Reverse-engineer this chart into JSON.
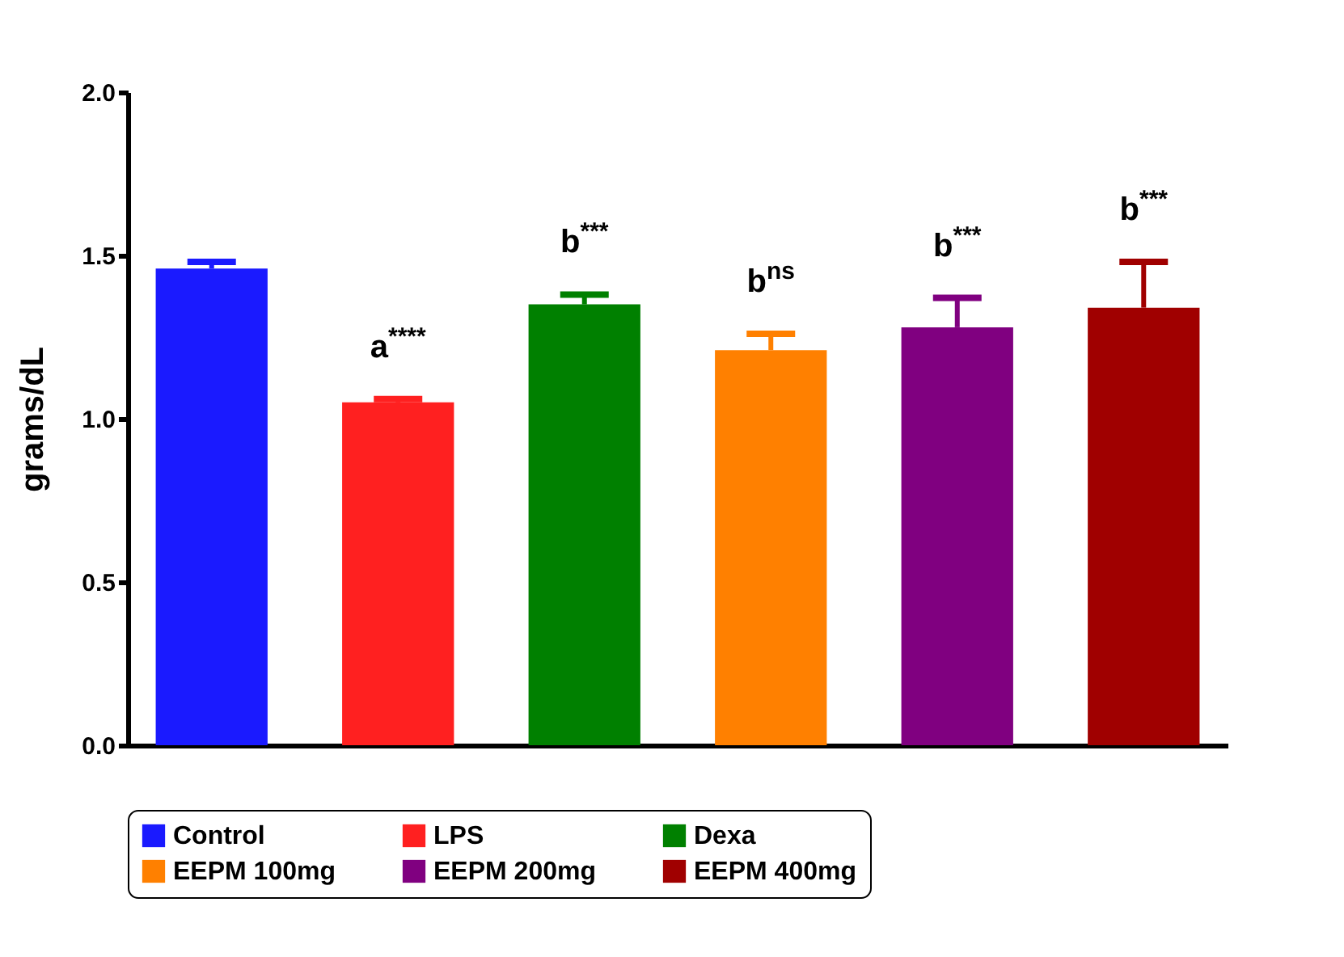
{
  "chart_data": {
    "type": "bar",
    "ylabel": "grams/dL",
    "categories": [
      null
    ],
    "series": [
      {
        "name": "Control",
        "color": "#1a1aff",
        "values": [
          1.46
        ],
        "errors": [
          [
            1.46,
            1.48
          ]
        ]
      },
      {
        "name": "LPS",
        "color": "#ff2020",
        "values": [
          1.05
        ],
        "errors": [
          [
            1.05,
            1.06
          ]
        ]
      },
      {
        "name": "Dexa",
        "color": "#008000",
        "values": [
          1.35
        ],
        "errors": [
          [
            1.35,
            1.38
          ]
        ]
      },
      {
        "name": "EEPM 100mg",
        "color": "#ff8000",
        "values": [
          1.21
        ],
        "errors": [
          [
            1.21,
            1.26
          ]
        ]
      },
      {
        "name": "EEPM 200mg",
        "color": "#800080",
        "values": [
          1.28
        ],
        "errors": [
          [
            1.28,
            1.37
          ]
        ]
      },
      {
        "name": "EEPM 400mg",
        "color": "#a00000",
        "values": [
          1.34
        ],
        "errors": [
          [
            1.34,
            1.48
          ]
        ]
      }
    ],
    "ylim": [
      0,
      2
    ],
    "yticks": [
      {
        "value": 0,
        "label": "0.0"
      },
      {
        "value": 0.5,
        "label": "0.5"
      },
      {
        "value": 1,
        "label": "1.0"
      },
      {
        "value": 1.5,
        "label": "1.5"
      },
      {
        "value": 2,
        "label": "2.0"
      }
    ],
    "annotations": [
      "a$^{****}$",
      "b$^{***}$",
      "b$^{ns}$",
      "b$^{***}$",
      "b$^{***}$"
    ],
    "legend": "bottom",
    "grid": false,
    "tick_labels": "y"
  }
}
